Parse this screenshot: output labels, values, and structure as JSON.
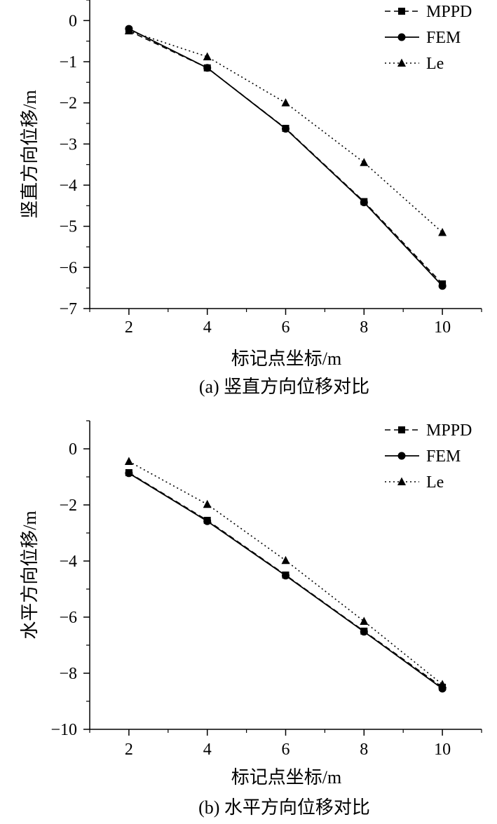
{
  "chart_data": [
    {
      "type": "line",
      "title": "",
      "caption": "(a) 竖直方向位移对比",
      "xlabel": "标记点坐标/m",
      "ylabel": "竖直方向位移/m",
      "xlim": [
        1,
        11
      ],
      "ylim": [
        -7,
        0.5
      ],
      "xticks": [
        2,
        4,
        6,
        8,
        10
      ],
      "yticks": [
        0,
        -1,
        -2,
        -3,
        -4,
        -5,
        -6,
        -7
      ],
      "ytick_labels": [
        "0",
        "−1",
        "−2",
        "−3",
        "−4",
        "−5",
        "−6",
        "−7"
      ],
      "xtick_labels": [
        "2",
        "4",
        "6",
        "8",
        "10"
      ],
      "x": [
        2,
        4,
        6,
        8,
        10
      ],
      "series": [
        {
          "name": "MPPD",
          "style": "dashed",
          "marker": "square",
          "values": [
            -0.25,
            -1.15,
            -2.62,
            -4.4,
            -6.4
          ]
        },
        {
          "name": "FEM",
          "style": "solid",
          "marker": "circle",
          "values": [
            -0.2,
            -1.15,
            -2.63,
            -4.42,
            -6.45
          ]
        },
        {
          "name": "Le",
          "style": "dotted",
          "marker": "triangle",
          "values": [
            -0.25,
            -0.88,
            -2.0,
            -3.45,
            -5.15
          ]
        }
      ],
      "legend_position": "top-right",
      "color": "#000000"
    },
    {
      "type": "line",
      "title": "",
      "caption": "(b) 水平方向位移对比",
      "xlabel": "标记点坐标/m",
      "ylabel": "水平方向位移/m",
      "xlim": [
        1,
        11
      ],
      "ylim": [
        -10,
        1
      ],
      "xticks": [
        2,
        4,
        6,
        8,
        10
      ],
      "yticks": [
        0,
        -2,
        -4,
        -6,
        -8,
        -10
      ],
      "ytick_labels": [
        "0",
        "−2",
        "−4",
        "−6",
        "−8",
        "−10"
      ],
      "xtick_labels": [
        "2",
        "4",
        "6",
        "8",
        "10"
      ],
      "x": [
        2,
        4,
        6,
        8,
        10
      ],
      "series": [
        {
          "name": "MPPD",
          "style": "dashed",
          "marker": "square",
          "values": [
            -0.85,
            -2.55,
            -4.5,
            -6.5,
            -8.5
          ]
        },
        {
          "name": "FEM",
          "style": "solid",
          "marker": "circle",
          "values": [
            -0.87,
            -2.58,
            -4.52,
            -6.52,
            -8.55
          ]
        },
        {
          "name": "Le",
          "style": "dotted",
          "marker": "triangle",
          "values": [
            -0.45,
            -1.98,
            -3.98,
            -6.15,
            -8.4
          ]
        }
      ],
      "legend_position": "top-right",
      "color": "#000000"
    }
  ]
}
